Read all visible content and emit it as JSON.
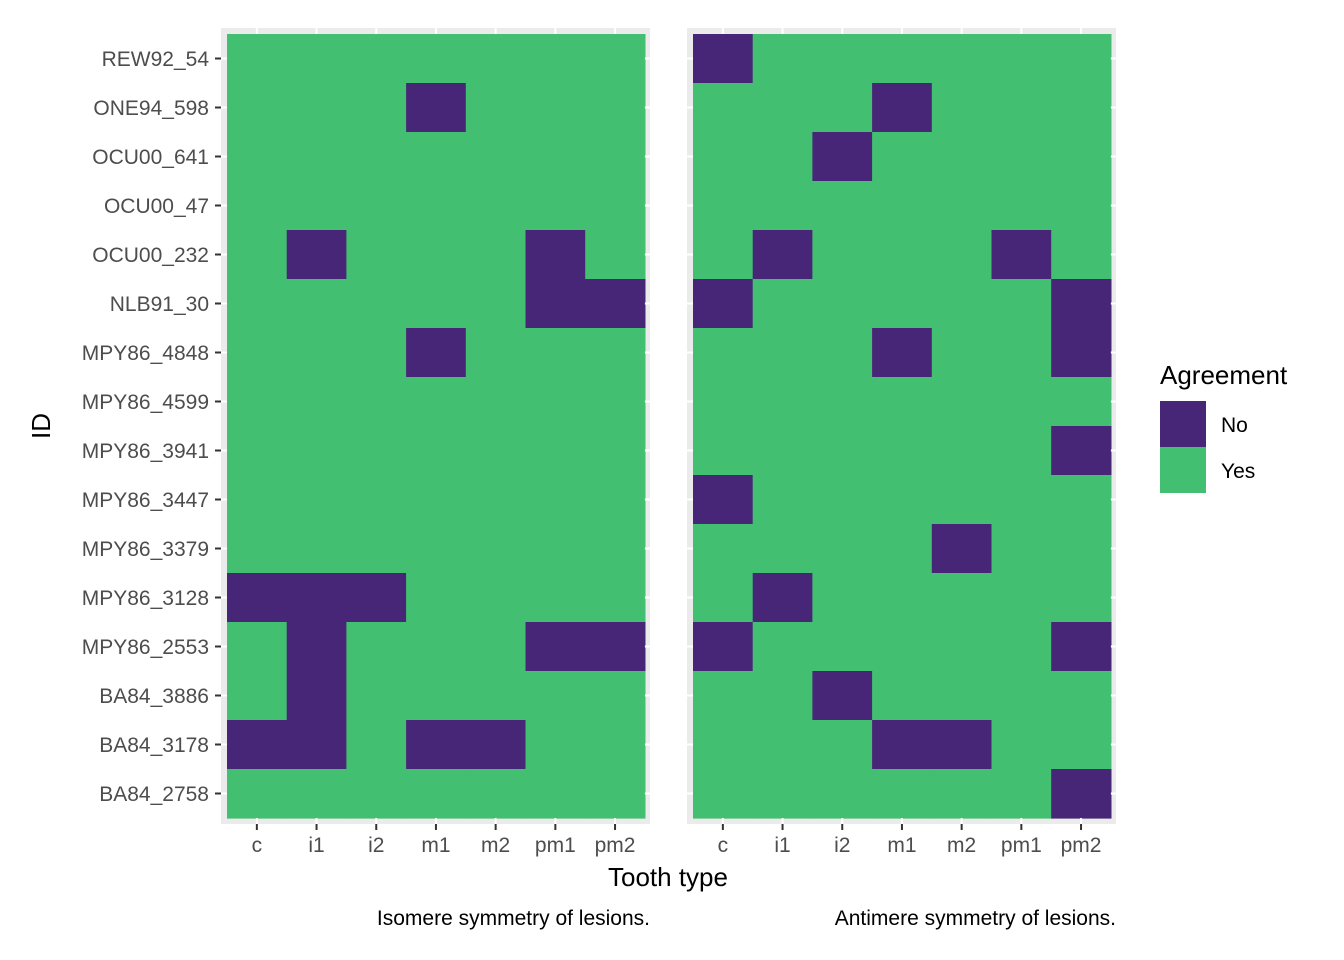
{
  "chart_data": {
    "type": "heatmap",
    "x_title": "Tooth type",
    "y_title": "ID",
    "categories_x": [
      "c",
      "i1",
      "i2",
      "m1",
      "m2",
      "pm1",
      "pm2"
    ],
    "categories_y": [
      "REW92_54",
      "ONE94_598",
      "OCU00_641",
      "OCU00_47",
      "OCU00_232",
      "NLB91_30",
      "MPY86_4848",
      "MPY86_4599",
      "MPY86_3941",
      "MPY86_3447",
      "MPY86_3379",
      "MPY86_3128",
      "MPY86_2553",
      "BA84_3886",
      "BA84_3178",
      "BA84_2758"
    ],
    "legend": {
      "title": "Agreement",
      "position": "right",
      "entries": [
        {
          "label": "No",
          "color": "#482677"
        },
        {
          "label": "Yes",
          "color": "#43bf71"
        }
      ]
    },
    "panels": [
      {
        "caption": "Isomere symmetry of lesions.",
        "no_cells": [
          [
            "ONE94_598",
            "m1"
          ],
          [
            "OCU00_232",
            "i1"
          ],
          [
            "OCU00_232",
            "pm1"
          ],
          [
            "NLB91_30",
            "pm1"
          ],
          [
            "NLB91_30",
            "pm2"
          ],
          [
            "MPY86_4848",
            "m1"
          ],
          [
            "MPY86_3128",
            "c"
          ],
          [
            "MPY86_3128",
            "i1"
          ],
          [
            "MPY86_3128",
            "i2"
          ],
          [
            "MPY86_2553",
            "i1"
          ],
          [
            "MPY86_2553",
            "pm1"
          ],
          [
            "MPY86_2553",
            "pm2"
          ],
          [
            "BA84_3886",
            "i1"
          ],
          [
            "BA84_3178",
            "c"
          ],
          [
            "BA84_3178",
            "i1"
          ],
          [
            "BA84_3178",
            "m1"
          ],
          [
            "BA84_3178",
            "m2"
          ]
        ]
      },
      {
        "caption": "Antimere symmetry of lesions.",
        "no_cells": [
          [
            "REW92_54",
            "c"
          ],
          [
            "ONE94_598",
            "m1"
          ],
          [
            "OCU00_641",
            "i2"
          ],
          [
            "OCU00_232",
            "i1"
          ],
          [
            "OCU00_232",
            "pm1"
          ],
          [
            "NLB91_30",
            "c"
          ],
          [
            "NLB91_30",
            "pm2"
          ],
          [
            "MPY86_4848",
            "m1"
          ],
          [
            "MPY86_4848",
            "pm2"
          ],
          [
            "MPY86_3941",
            "pm2"
          ],
          [
            "MPY86_3447",
            "c"
          ],
          [
            "MPY86_3379",
            "m2"
          ],
          [
            "MPY86_3128",
            "i1"
          ],
          [
            "MPY86_2553",
            "c"
          ],
          [
            "MPY86_2553",
            "pm2"
          ],
          [
            "BA84_3886",
            "i2"
          ],
          [
            "BA84_3178",
            "m1"
          ],
          [
            "BA84_3178",
            "m2"
          ],
          [
            "BA84_2758",
            "pm2"
          ]
        ]
      }
    ]
  }
}
